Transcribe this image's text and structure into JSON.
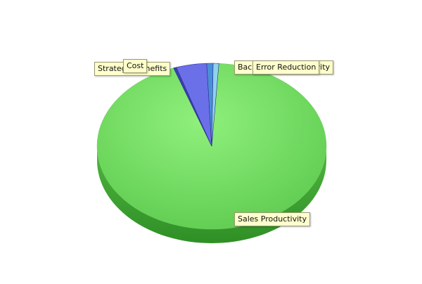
{
  "chart_data": {
    "type": "pie",
    "title": "",
    "style": "3d",
    "slices": [
      {
        "label": "Sales Productivity",
        "value": 93.6,
        "color": "#7ddc6a"
      },
      {
        "label": "Strategic Benefits",
        "value": 0.4,
        "color": "#3b3fb0"
      },
      {
        "label": "Cost",
        "value": 4.3,
        "color": "#6b6fe8"
      },
      {
        "label": "Back Office Productivity",
        "value": 0.9,
        "color": "#4a8fd8"
      },
      {
        "label": "Error Reduction",
        "value": 0.8,
        "color": "#8fd2ee"
      }
    ]
  }
}
